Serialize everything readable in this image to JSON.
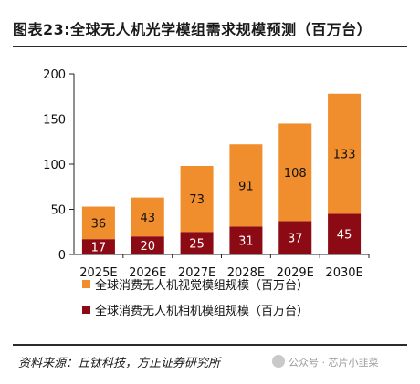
{
  "title": "图表23:全球无人机光学模组需求规模预测（百万台）",
  "source": "资料来源：丘钛科技，方正证券研究所",
  "watermark": "公众号 · 芯片小韭菜",
  "colors": {
    "orange": "#F08D2C",
    "darkred": "#8C0A14"
  },
  "chart_data": {
    "type": "bar",
    "stacked": true,
    "categories": [
      "2025E",
      "2026E",
      "2027E",
      "2028E",
      "2029E",
      "2030E"
    ],
    "series": [
      {
        "name": "全球消费无人机相机模组规模（百万台）",
        "color": "#8C0A14",
        "values": [
          17,
          20,
          25,
          31,
          37,
          45
        ],
        "label_color": "#ffffff"
      },
      {
        "name": "全球消费无人机视觉模组规模（百万台）",
        "color": "#F08D2C",
        "values": [
          36,
          43,
          73,
          91,
          108,
          133
        ],
        "label_color": "#111111"
      }
    ],
    "legend_order": [
      1,
      0
    ],
    "legend_position": "bottom",
    "yticks": [
      0,
      50,
      100,
      150,
      200
    ],
    "ylim": [
      0,
      200
    ],
    "grid": false
  }
}
